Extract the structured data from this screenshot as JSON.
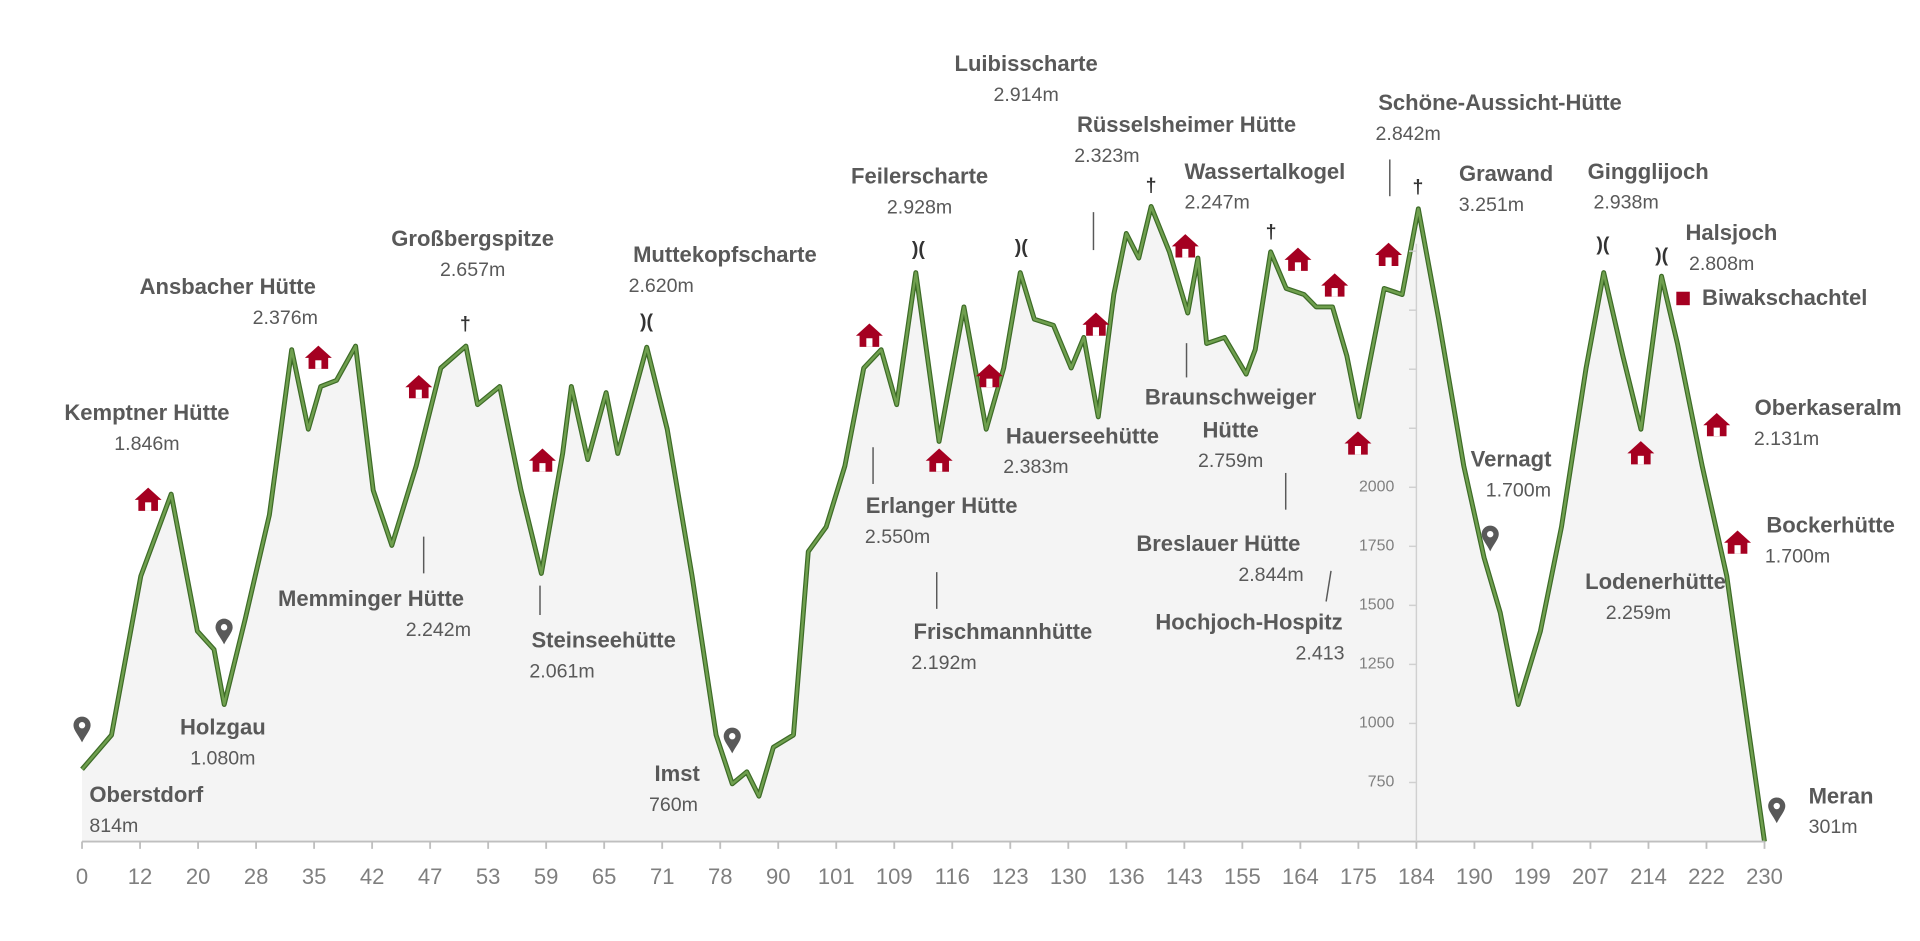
{
  "chart_data": {
    "type": "profile",
    "x": [
      0,
      6.1,
      12.1,
      16.3,
      19.9,
      22.2,
      23.6,
      26.5,
      29.6,
      32.3,
      34.3,
      35.8,
      37.7,
      40.0,
      42.1,
      43.7,
      45.8,
      48.1,
      50.7,
      51.9,
      54.2,
      56.4,
      58.5,
      60.7,
      61.6,
      63.3,
      65.2,
      66.4,
      69.4,
      71.6,
      74.6,
      77.5,
      80.5,
      83.5,
      86.0,
      89.0,
      92.9,
      95.7,
      99.1,
      102.2,
      104.8,
      107.2,
      109.3,
      111.6,
      114.4,
      117.4,
      120.1,
      122.2,
      124.2,
      125.9,
      128.2,
      130.3,
      131.6,
      133.1,
      134.7,
      136.0,
      137.5,
      139.0,
      141.2,
      143.7,
      145.8,
      147.6,
      151.3,
      155.6,
      157.0,
      159.4,
      161.8,
      164.7,
      167.0,
      170.1,
      172.8,
      175.1,
      179.0,
      181.8,
      184.2,
      186.3,
      188.9,
      191.5,
      194.0,
      196.8,
      200.1,
      203.0,
      206.4,
      208.6,
      210.9,
      213.1,
      215.8,
      218.0,
      221.4,
      224.8,
      227.3,
      230
    ],
    "values": [
      806,
      951,
      1624,
      1971,
      1391,
      1313,
      1080,
      1443,
      1883,
      2583,
      2246,
      2427,
      2453,
      2598,
      1987,
      1754,
      2091,
      2505,
      2598,
      2350,
      2427,
      1987,
      1635,
      2143,
      2427,
      2117,
      2401,
      2143,
      2593,
      2246,
      1624,
      951,
      744,
      795,
      692,
      899,
      951,
      1728,
      1832,
      2091,
      2505,
      2583,
      2350,
      2909,
      2194,
      2764,
      2246,
      2505,
      2909,
      2712,
      2686,
      2505,
      2635,
      2298,
      2816,
      3075,
      2971,
      3189,
      2997,
      2738,
      2971,
      2609,
      2635,
      2479,
      2583,
      2997,
      2842,
      2816,
      2764,
      2764,
      2557,
      2298,
      2842,
      2816,
      3179,
      2712,
      2091,
      1702,
      1469,
      1080,
      1391,
      1832,
      2505,
      2909,
      2557,
      2246,
      2894,
      2609,
      2091,
      1624,
      1080,
      500
    ],
    "color": "#6f9f4e",
    "xlim": [
      0,
      230
    ],
    "xticks": [
      0,
      12,
      20,
      28,
      35,
      42,
      47,
      53,
      59,
      65,
      71,
      78,
      90,
      101,
      109,
      116,
      123,
      130,
      136,
      143,
      155,
      164,
      175,
      184,
      190,
      199,
      207,
      214,
      222,
      230
    ],
    "ylim": [
      500,
      3300
    ],
    "yticks": [
      750,
      1000,
      1250,
      1500,
      1750,
      2000
    ],
    "yminorticks": [
      2250,
      2500,
      2750,
      3000
    ],
    "annotations": [
      {
        "name": "Kemptner Hütte",
        "elevation": "1.846m"
      },
      {
        "name": "Oberstdorf",
        "elevation": "814m"
      },
      {
        "name": "Holzgau",
        "elevation": "1.080m"
      },
      {
        "name": "Ansbacher Hütte",
        "elevation": "2.376m"
      },
      {
        "name": "Memminger Hütte",
        "elevation": "2.242m"
      },
      {
        "name": "Großbergspitze",
        "elevation": "2.657m"
      },
      {
        "name": "Steinseehütte",
        "elevation": "2.061m"
      },
      {
        "name": "Muttekopfscharte",
        "elevation": "2.620m"
      },
      {
        "name": "Imst",
        "elevation": "760m"
      },
      {
        "name": "Feilerscharte",
        "elevation": "2.928m"
      },
      {
        "name": "Erlanger Hütte",
        "elevation": "2.550m"
      },
      {
        "name": "Frischmannhütte",
        "elevation": "2.192m"
      },
      {
        "name": "Luibisscharte",
        "elevation": "2.914m"
      },
      {
        "name": "Hauerseehütte",
        "elevation": "2.383m"
      },
      {
        "name": "Rüsselsheimer Hütte",
        "elevation": "2.323m"
      },
      {
        "name": "Wassertalkogel",
        "elevation": "2.247m"
      },
      {
        "name": "Braunschweiger Hütte",
        "elevation": "2.759m"
      },
      {
        "name": "Breslauer Hütte",
        "elevation": "2.844m"
      },
      {
        "name": "Hochjoch-Hospitz",
        "elevation": "2.413"
      },
      {
        "name": "Schöne-Aussicht-Hütte",
        "elevation": "2.842m"
      },
      {
        "name": "Grawand",
        "elevation": "3.251m"
      },
      {
        "name": "Vernagt",
        "elevation": "1.700m"
      },
      {
        "name": "Gingglijoch",
        "elevation": "2.938m"
      },
      {
        "name": "Halsjoch",
        "elevation": "2.808m"
      },
      {
        "name": "Oberkaseralm",
        "elevation": "2.131m"
      },
      {
        "name": "Bockerhütte",
        "elevation": "1.700m"
      },
      {
        "name": "Lodenerhütte",
        "elevation": "2.259m"
      },
      {
        "name": "Meran",
        "elevation": "301m"
      }
    ],
    "legend": {
      "label": "Biwakschachtel",
      "color": "#a50021"
    },
    "symbols": {
      "pass": ")(",
      "summit": "†"
    }
  }
}
